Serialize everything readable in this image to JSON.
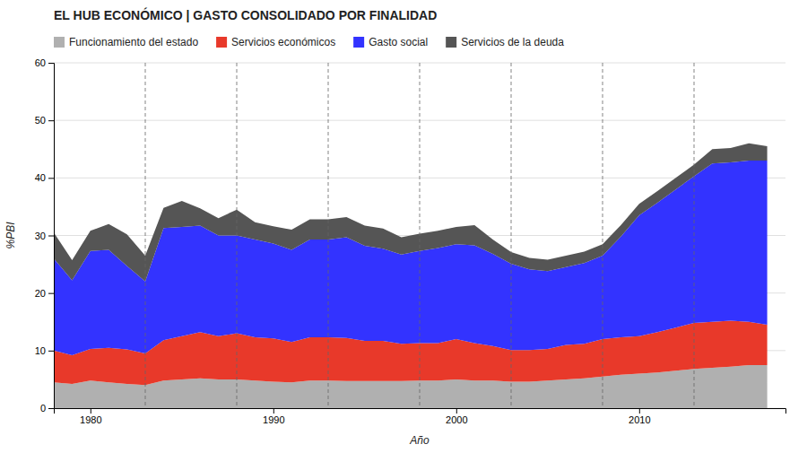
{
  "chart_data": {
    "type": "area",
    "stacked": true,
    "title": "EL HUB ECONÓMICO | GASTO CONSOLIDADO POR FINALIDAD",
    "xlabel": "Año",
    "ylabel": "%PBI",
    "xlim": [
      1978,
      2018
    ],
    "ylim": [
      0,
      60
    ],
    "xticks": [
      1980,
      1990,
      2000,
      2010
    ],
    "yticks": [
      0,
      10,
      20,
      30,
      40,
      50,
      60
    ],
    "grid": true,
    "legend": "upper left",
    "vlines": [
      1983,
      1988,
      1993,
      1998,
      2003,
      2008,
      2013
    ],
    "x": [
      1978,
      1979,
      1980,
      1981,
      1982,
      1983,
      1984,
      1985,
      1986,
      1987,
      1988,
      1989,
      1990,
      1991,
      1992,
      1993,
      1994,
      1995,
      1996,
      1997,
      1998,
      1999,
      2000,
      2001,
      2002,
      2003,
      2004,
      2005,
      2006,
      2007,
      2008,
      2009,
      2010,
      2011,
      2012,
      2013,
      2014,
      2015,
      2016,
      2017
    ],
    "series": [
      {
        "name": "Funcionamiento del estado",
        "color": "#b0b0b0",
        "values": [
          4.5,
          4.2,
          4.8,
          4.5,
          4.2,
          4.0,
          4.8,
          5.0,
          5.2,
          5.0,
          5.0,
          4.8,
          4.6,
          4.5,
          4.8,
          4.8,
          4.7,
          4.7,
          4.7,
          4.7,
          4.8,
          4.8,
          5.0,
          4.8,
          4.8,
          4.6,
          4.6,
          4.8,
          5.0,
          5.2,
          5.5,
          5.8,
          6.0,
          6.2,
          6.5,
          6.8,
          7.0,
          7.2,
          7.5,
          7.5
        ]
      },
      {
        "name": "Servicios económicos",
        "color": "#e8392a",
        "values": [
          5.5,
          5.0,
          5.5,
          6.0,
          6.0,
          5.5,
          7.0,
          7.5,
          8.0,
          7.5,
          8.0,
          7.5,
          7.5,
          7.0,
          7.5,
          7.5,
          7.5,
          7.0,
          7.0,
          6.5,
          6.5,
          6.5,
          7.0,
          6.5,
          6.0,
          5.5,
          5.5,
          5.5,
          6.0,
          6.0,
          6.5,
          6.5,
          6.5,
          7.0,
          7.5,
          8.0,
          8.0,
          8.0,
          7.5,
          7.0
        ]
      },
      {
        "name": "Gasto social",
        "color": "#3333ff",
        "values": [
          16.0,
          13.0,
          17.0,
          17.0,
          14.5,
          12.5,
          19.5,
          19.0,
          18.5,
          17.5,
          17.0,
          17.0,
          16.5,
          16.0,
          17.0,
          17.0,
          17.5,
          16.5,
          16.0,
          15.5,
          16.0,
          16.5,
          16.5,
          17.0,
          16.0,
          15.0,
          14.0,
          13.5,
          13.5,
          14.0,
          14.5,
          17.5,
          21.0,
          22.5,
          24.0,
          25.5,
          27.5,
          27.5,
          28.0,
          28.5
        ]
      },
      {
        "name": "Servicios de la deuda",
        "color": "#555555",
        "values": [
          4.5,
          3.5,
          3.5,
          4.5,
          5.5,
          4.5,
          3.5,
          4.5,
          3.0,
          3.0,
          4.5,
          3.0,
          3.0,
          3.5,
          3.5,
          3.5,
          3.5,
          3.5,
          3.5,
          3.0,
          3.0,
          3.0,
          3.0,
          3.5,
          2.5,
          2.0,
          2.0,
          2.0,
          2.0,
          2.0,
          2.0,
          2.0,
          2.0,
          2.0,
          2.0,
          2.0,
          2.5,
          2.5,
          3.0,
          2.5
        ]
      }
    ]
  }
}
